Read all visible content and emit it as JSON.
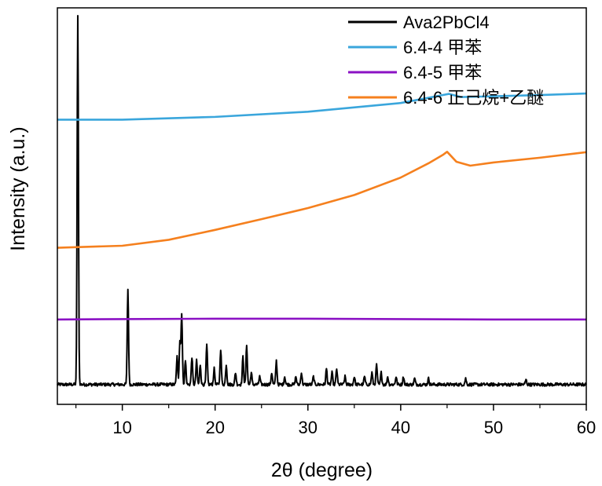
{
  "chart_data": {
    "type": "line",
    "xlabel": "2θ (degree)",
    "ylabel": "Intensity (a.u.)",
    "xlim": [
      3,
      60
    ],
    "ylim": [
      0,
      1
    ],
    "x_ticks": [
      10,
      20,
      30,
      40,
      50,
      60
    ],
    "y_tick_labels_shown": false,
    "legend_position": "top-right",
    "series": [
      {
        "name": "Ava2PbCl4",
        "color": "#000000",
        "baseline": 0.05,
        "noise": 0.004,
        "peaks": [
          [
            5.2,
            0.93
          ],
          [
            10.6,
            0.24
          ],
          [
            15.9,
            0.07
          ],
          [
            16.2,
            0.11
          ],
          [
            16.4,
            0.18
          ],
          [
            16.8,
            0.06
          ],
          [
            17.5,
            0.07
          ],
          [
            18.0,
            0.06
          ],
          [
            18.4,
            0.05
          ],
          [
            19.1,
            0.1
          ],
          [
            19.9,
            0.04
          ],
          [
            20.6,
            0.09
          ],
          [
            21.2,
            0.05
          ],
          [
            22.2,
            0.03
          ],
          [
            23.0,
            0.07
          ],
          [
            23.4,
            0.1
          ],
          [
            23.9,
            0.03
          ],
          [
            24.8,
            0.02
          ],
          [
            26.1,
            0.03
          ],
          [
            26.6,
            0.06
          ],
          [
            27.5,
            0.02
          ],
          [
            28.7,
            0.02
          ],
          [
            29.3,
            0.03
          ],
          [
            30.6,
            0.02
          ],
          [
            32.0,
            0.04
          ],
          [
            32.6,
            0.03
          ],
          [
            33.1,
            0.04
          ],
          [
            34.0,
            0.02
          ],
          [
            35.0,
            0.02
          ],
          [
            36.1,
            0.02
          ],
          [
            36.9,
            0.03
          ],
          [
            37.4,
            0.05
          ],
          [
            37.9,
            0.03
          ],
          [
            38.6,
            0.02
          ],
          [
            39.5,
            0.02
          ],
          [
            40.3,
            0.02
          ],
          [
            41.5,
            0.015
          ],
          [
            43.0,
            0.015
          ],
          [
            47.0,
            0.015
          ],
          [
            53.5,
            0.012
          ]
        ]
      },
      {
        "name": "6.4-4 甲苯",
        "color": "#3aa6dc",
        "x": [
          3,
          10,
          20,
          30,
          40,
          44.5,
          45.2,
          46.5,
          50,
          55,
          60
        ],
        "y": [
          0.718,
          0.718,
          0.725,
          0.738,
          0.76,
          0.78,
          0.783,
          0.775,
          0.777,
          0.78,
          0.784
        ]
      },
      {
        "name": "6.4-5 甲苯",
        "color": "#8b12c4",
        "x": [
          3,
          10,
          20,
          30,
          40,
          50,
          60
        ],
        "y": [
          0.214,
          0.215,
          0.216,
          0.216,
          0.215,
          0.214,
          0.214
        ]
      },
      {
        "name": "6.4-6 正己烷+乙醚",
        "color": "#f5801e",
        "x": [
          3,
          10,
          15,
          20,
          25,
          30,
          35,
          40,
          43,
          44.6,
          45.0,
          46,
          47.5,
          50,
          55,
          60
        ],
        "y": [
          0.395,
          0.4,
          0.415,
          0.44,
          0.467,
          0.495,
          0.528,
          0.572,
          0.608,
          0.63,
          0.637,
          0.612,
          0.602,
          0.61,
          0.622,
          0.636
        ]
      }
    ]
  }
}
